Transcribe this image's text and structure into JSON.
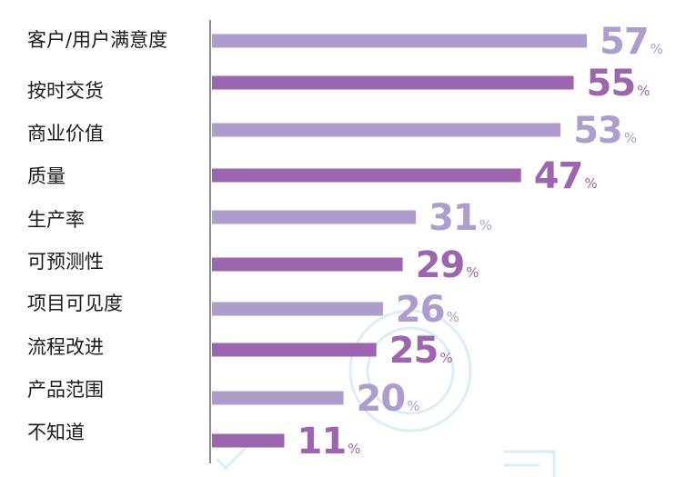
{
  "chart_data": {
    "type": "bar",
    "orientation": "horizontal",
    "categories": [
      "客户/用户满意度",
      "按时交货",
      "商业价值",
      "质量",
      "生产率",
      "可预测性",
      "项目可见度",
      "流程改进",
      "产品范围",
      "不知道"
    ],
    "values": [
      57,
      55,
      53,
      47,
      31,
      29,
      26,
      25,
      20,
      11
    ],
    "value_suffix": "%",
    "xlim": [
      0,
      57
    ],
    "grid": false,
    "legend": "none",
    "colors": {
      "light": "#ad9dcc",
      "dark": "#9b66ad",
      "axis": "#8c8c8c",
      "label": "#1a1a1a",
      "watermark": "#d9eef8"
    }
  }
}
